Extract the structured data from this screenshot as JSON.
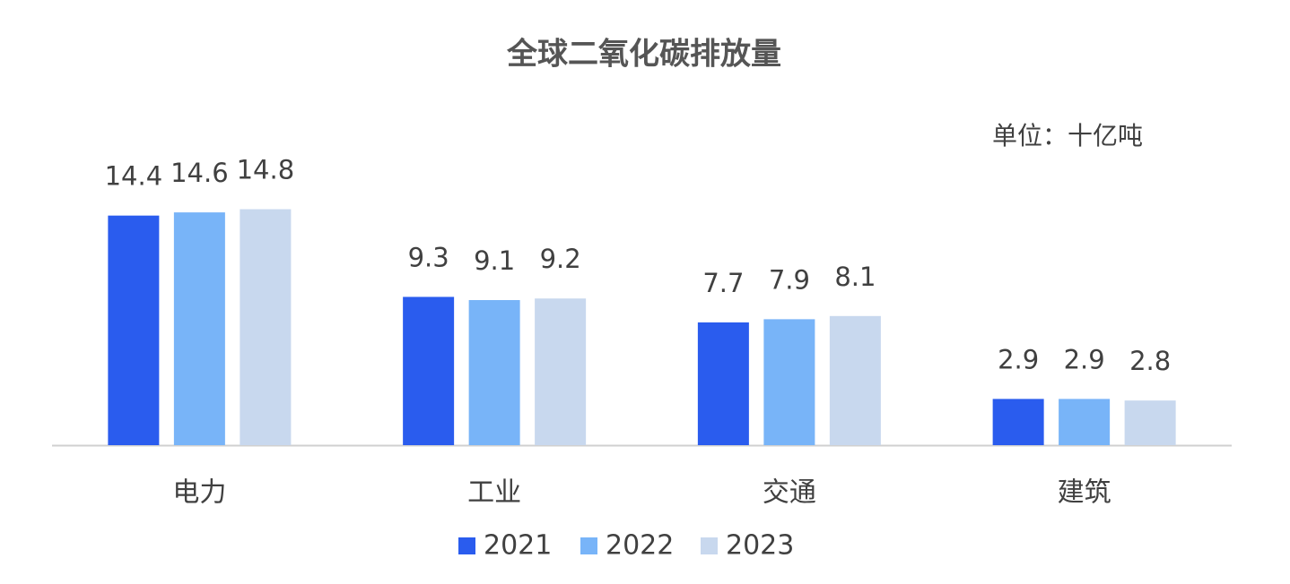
{
  "chart_data": {
    "type": "bar",
    "title": "全球二氧化碳排放量",
    "annotation": "单位：十亿吨",
    "categories": [
      "电力",
      "工业",
      "交通",
      "建筑"
    ],
    "series": [
      {
        "name": "2021",
        "color": "#2a5cee",
        "values": [
          14.4,
          9.3,
          7.7,
          2.9
        ]
      },
      {
        "name": "2022",
        "color": "#78b4f8",
        "values": [
          14.6,
          9.1,
          7.9,
          2.9
        ]
      },
      {
        "name": "2023",
        "color": "#c8d8ee",
        "values": [
          14.8,
          9.2,
          8.1,
          2.8
        ]
      }
    ]
  }
}
